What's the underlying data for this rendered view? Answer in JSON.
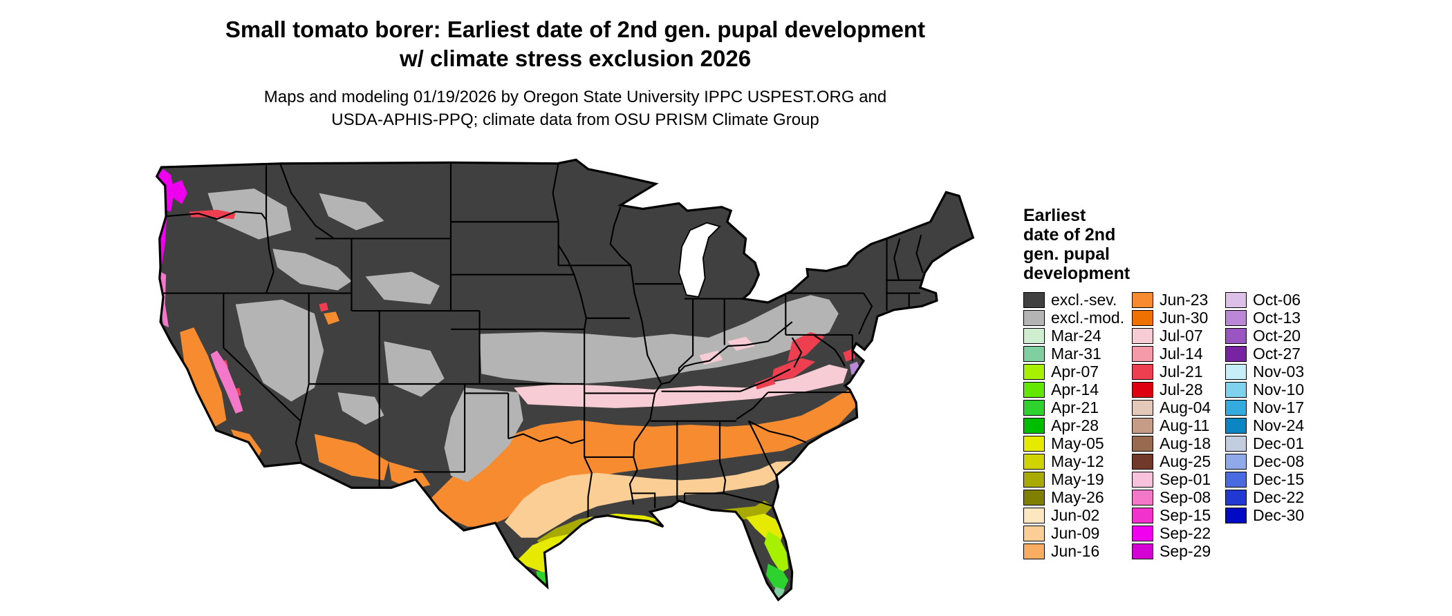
{
  "title": {
    "line1": "Small tomato borer: Earliest date of 2nd gen. pupal development",
    "line2": "w/ climate stress exclusion 2026"
  },
  "subtitle": {
    "line1": "Maps and modeling 01/19/2026 by Oregon State University IPPC USPEST.ORG and",
    "line2": "USDA-APHIS-PPQ; climate data from OSU PRISM Climate Group"
  },
  "legend": {
    "title_lines": [
      "Earliest",
      "date of 2nd",
      "gen. pupal",
      "development"
    ],
    "columns": [
      [
        {
          "label": "excl.-sev.",
          "color": "#404040"
        },
        {
          "label": "excl.-mod.",
          "color": "#b4b4b4"
        },
        {
          "label": "Mar-24",
          "color": "#cfeecf"
        },
        {
          "label": "Mar-31",
          "color": "#7fcfa0"
        },
        {
          "label": "Apr-07",
          "color": "#a6f000"
        },
        {
          "label": "Apr-14",
          "color": "#63e600"
        },
        {
          "label": "Apr-21",
          "color": "#2ed22e"
        },
        {
          "label": "Apr-28",
          "color": "#00bd00"
        },
        {
          "label": "May-05",
          "color": "#e6ea00"
        },
        {
          "label": "May-12",
          "color": "#cfd400"
        },
        {
          "label": "May-19",
          "color": "#a8aa00"
        },
        {
          "label": "May-26",
          "color": "#7f8000"
        },
        {
          "label": "Jun-02",
          "color": "#fde7c0"
        },
        {
          "label": "Jun-09",
          "color": "#fbce96"
        },
        {
          "label": "Jun-16",
          "color": "#f8ad62"
        }
      ],
      [
        {
          "label": "Jun-23",
          "color": "#f68c2f"
        },
        {
          "label": "Jun-30",
          "color": "#ef7100"
        },
        {
          "label": "Jul-07",
          "color": "#f8ccd4"
        },
        {
          "label": "Jul-14",
          "color": "#f49aa8"
        },
        {
          "label": "Jul-21",
          "color": "#ee3f50"
        },
        {
          "label": "Jul-28",
          "color": "#dd0010"
        },
        {
          "label": "Aug-04",
          "color": "#e4c8ba"
        },
        {
          "label": "Aug-11",
          "color": "#c69c86"
        },
        {
          "label": "Aug-18",
          "color": "#9a6a50"
        },
        {
          "label": "Aug-25",
          "color": "#70392a"
        },
        {
          "label": "Sep-01",
          "color": "#f9c2dc"
        },
        {
          "label": "Sep-08",
          "color": "#f478ca"
        },
        {
          "label": "Sep-15",
          "color": "#f133cb"
        },
        {
          "label": "Sep-22",
          "color": "#ee00ee"
        },
        {
          "label": "Sep-29",
          "color": "#d400d4"
        }
      ],
      [
        {
          "label": "Oct-06",
          "color": "#ddc0e8"
        },
        {
          "label": "Oct-13",
          "color": "#bb88d8"
        },
        {
          "label": "Oct-20",
          "color": "#9a55c2"
        },
        {
          "label": "Oct-27",
          "color": "#7723a2"
        },
        {
          "label": "Nov-03",
          "color": "#c6edf8"
        },
        {
          "label": "Nov-10",
          "color": "#7fd2ee"
        },
        {
          "label": "Nov-17",
          "color": "#34aade"
        },
        {
          "label": "Nov-24",
          "color": "#0b86c2"
        },
        {
          "label": "Dec-01",
          "color": "#c2cede"
        },
        {
          "label": "Dec-08",
          "color": "#8fa9e9"
        },
        {
          "label": "Dec-15",
          "color": "#4a6ae2"
        },
        {
          "label": "Dec-22",
          "color": "#2138d2"
        },
        {
          "label": "Dec-30",
          "color": "#0009c4"
        }
      ]
    ]
  }
}
